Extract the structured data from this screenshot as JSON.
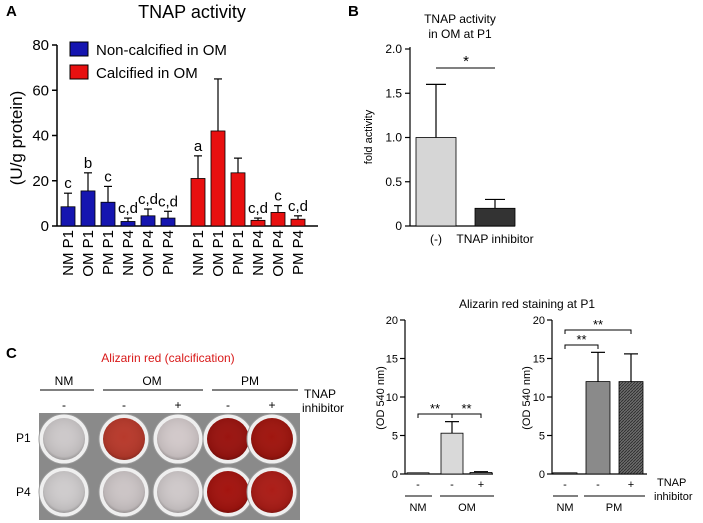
{
  "panel_labels": {
    "a": "A",
    "b": "B",
    "c": "C"
  },
  "panel_c": {
    "title": "Alizarin red (calcification)",
    "groups": [
      "NM",
      "OM",
      "PM"
    ],
    "columns": [
      "-",
      "-",
      "+",
      "-",
      "+"
    ],
    "rows": [
      "P1",
      "P4"
    ],
    "tnap_label_1": "TNAP",
    "tnap_label_2": "inhibitor",
    "well_colors": [
      [
        "#cdc9ca",
        "#b83a2c",
        "#d2c9ca",
        "#9a1410",
        "#a0160f"
      ],
      [
        "#cfcccd",
        "#ccc5c6",
        "#cfc9ca",
        "#a3140f",
        "#ab1d17"
      ]
    ]
  },
  "chart_data": [
    {
      "id": "A",
      "type": "bar",
      "title": "TNAP activity",
      "ylabel": "(U/g protein)",
      "ylim": [
        0,
        80
      ],
      "yticks": [
        0,
        20,
        40,
        60,
        80
      ],
      "legend": {
        "placement": "top-left",
        "entries": [
          {
            "name": "Non-calcified in OM",
            "color": "#1515b0"
          },
          {
            "name": "Calcified in OM",
            "color": "#e81010"
          }
        ]
      },
      "series": [
        {
          "name": "Non-calcified in OM",
          "color": "#1515b0",
          "categories": [
            "NM P1",
            "OM P1",
            "PM P1",
            "NM P4",
            "OM P4",
            "PM P4"
          ],
          "values": [
            8.5,
            15.5,
            10.5,
            2.0,
            4.5,
            3.5
          ],
          "errors": [
            6.0,
            8.0,
            7.0,
            1.5,
            3.0,
            3.0
          ],
          "letters": [
            "c",
            "b",
            "c",
            "c,d",
            "c,d",
            "c,d"
          ]
        },
        {
          "name": "Calcified in OM",
          "color": "#e81010",
          "categories": [
            "NM P1",
            "OM P1",
            "PM P1",
            "NM P4",
            "OM P4",
            "PM P4"
          ],
          "values": [
            21,
            42,
            23.5,
            2.5,
            6.0,
            3.0
          ],
          "errors": [
            10,
            23,
            6.5,
            1.0,
            3.0,
            1.5
          ],
          "letters": [
            "a",
            "",
            "",
            "c,d",
            "c",
            "c,d"
          ]
        }
      ]
    },
    {
      "id": "B",
      "type": "bar",
      "title_1": "TNAP activity",
      "title_2": "in OM at P1",
      "ylabel": "fold activity",
      "ylim": [
        0,
        2.0
      ],
      "yticks": [
        "0",
        "0.5",
        "1.0",
        "1.5",
        "2.0"
      ],
      "categories": [
        "(-)",
        "TNAP inhibitor"
      ],
      "values": [
        1.0,
        0.2
      ],
      "errors": [
        0.6,
        0.1
      ],
      "colors": [
        "#d6d6d6",
        "#333333"
      ],
      "significance": "*"
    },
    {
      "id": "C-left",
      "type": "bar",
      "title": "Alizarin red staining at P1",
      "ylabel": "(OD 540 nm)",
      "ylim": [
        0,
        20
      ],
      "yticks": [
        0,
        5,
        10,
        15,
        20
      ],
      "categories": [
        "NM",
        "OM -",
        "OM +"
      ],
      "values": [
        0.1,
        5.3,
        0.2
      ],
      "errors": [
        0.0,
        1.5,
        0.1
      ],
      "significance": [
        "**",
        "**"
      ],
      "row_labels": [
        "-",
        "-",
        "+"
      ],
      "group_labels": [
        "NM",
        "OM"
      ]
    },
    {
      "id": "C-right",
      "type": "bar",
      "ylabel": "(OD 540 nm)",
      "ylim": [
        0,
        20
      ],
      "yticks": [
        0,
        5,
        10,
        15,
        20
      ],
      "categories": [
        "NM",
        "PM -",
        "PM +"
      ],
      "values": [
        0.1,
        12.0,
        12.0
      ],
      "errors": [
        0.0,
        3.8,
        3.6
      ],
      "significance": [
        "**",
        "**"
      ],
      "row_labels": [
        "-",
        "-",
        "+"
      ],
      "group_labels": [
        "NM",
        "PM"
      ],
      "tnap_label_1": "TNAP",
      "tnap_label_2": "inhibitor"
    }
  ]
}
